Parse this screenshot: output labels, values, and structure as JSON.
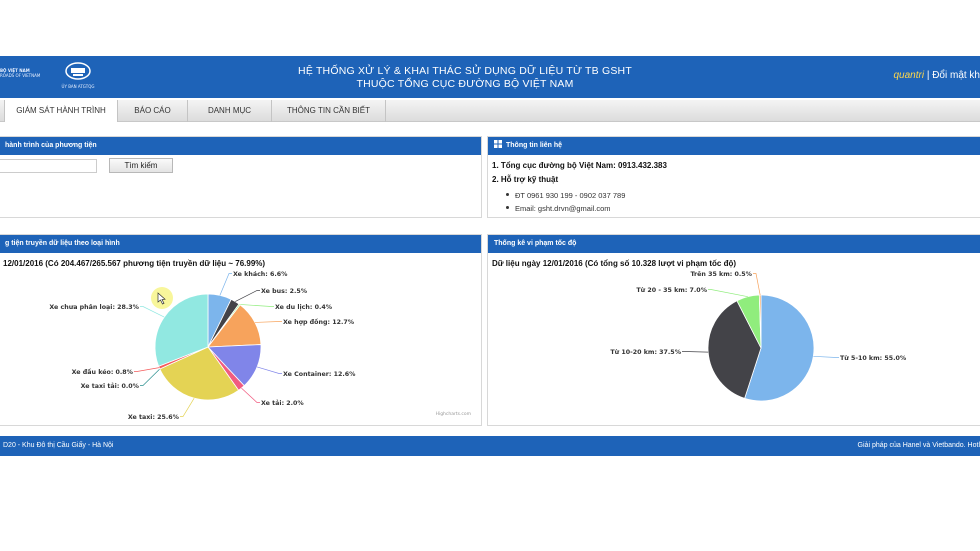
{
  "header": {
    "logo1_line1": "BỘ VIỆT NAM",
    "logo1_line2": "ROADS OF VIETNAM",
    "logo2_caption": "ỦY BAN ATGTQG",
    "title_line1": "HỆ THỐNG XỬ LÝ & KHAI THÁC SỬ DỤNG DỮ LIỆU TỪ TB GSHT",
    "title_line2": "THUỘC TỔNG CỤC ĐƯỜNG BỘ VIỆT NAM",
    "user_name": "quantri",
    "separator": " | ",
    "change_password": "Đổi mật kh"
  },
  "menu": {
    "items": [
      {
        "label": "GIÁM SÁT HÀNH TRÌNH"
      },
      {
        "label": "BÁO CÁO"
      },
      {
        "label": "DANH MỤC"
      },
      {
        "label": "THÔNG TIN CẦN BIẾT"
      }
    ]
  },
  "search_panel": {
    "title": "hành trình của phương tiện",
    "input_value": "",
    "button_label": "Tìm kiếm"
  },
  "contact_panel": {
    "title": "Thông tin liên hệ",
    "line1": "1. Tổng cục đường bộ Việt Nam: 0913.432.383",
    "line2": "2. Hỗ trợ kỹ thuật",
    "phone": "ĐT   0961 930 199 - 0902 037 789",
    "email_label": "Email: ",
    "email_value": "gsht.drvn@gmail.com"
  },
  "vehicle_panel": {
    "title": "g tiện truyền dữ liệu theo loại hình",
    "subtitle": "12/01/2016 (Có 204.467/265.567 phương tiện truyền dữ liệu ~ 76.99%)",
    "credit": "Highcharts.com"
  },
  "speed_panel": {
    "title": "Thống kê vi phạm tốc độ",
    "subtitle": "Dữ liệu ngày 12/01/2016 (Có tổng số 10.328 lượt vi phạm tốc độ)"
  },
  "footer": {
    "left": "D20 - Khu Đô thị Cầu Giấy - Hà Nội",
    "right": "Giải pháp của Hanel và Vietbando. Hotl"
  },
  "colors": {
    "header_blue": "#1e63b8",
    "slice_colors_vehicle": [
      "#7cb5ec",
      "#434348",
      "#90ed7d",
      "#f7a35c",
      "#8085e9",
      "#f15c80",
      "#e4d354",
      "#2b908f",
      "#f45b5b",
      "#91e8e1"
    ],
    "slice_colors_speed": [
      "#7cb5ec",
      "#434348",
      "#90ed7d",
      "#f7a35c"
    ]
  },
  "chart_data": [
    {
      "type": "pie",
      "title": "12/01/2016 (Có 204.467/265.567 phương tiện truyền dữ liệu ~ 76.99%)",
      "slices": [
        {
          "label": "Xe khách",
          "value": 6.6
        },
        {
          "label": "Xe bus",
          "value": 2.5
        },
        {
          "label": "Xe du lịch",
          "value": 0.4
        },
        {
          "label": "Xe hợp đồng",
          "value": 12.7
        },
        {
          "label": "Xe Container",
          "value": 12.6
        },
        {
          "label": "Xe tải",
          "value": 2.0
        },
        {
          "label": "Xe taxi",
          "value": 25.6
        },
        {
          "label": "Xe taxi tải",
          "value": 0.0
        },
        {
          "label": "Xe đầu kéo",
          "value": 0.8
        },
        {
          "label": "Xe chưa phân loại",
          "value": 28.3
        }
      ]
    },
    {
      "type": "pie",
      "title": "Dữ liệu ngày 12/01/2016 (Có tổng số 10.328 lượt vi phạm tốc độ)",
      "slices": [
        {
          "label": "Từ 5-10 km",
          "value": 55.0
        },
        {
          "label": "Từ 10-20 km",
          "value": 37.5
        },
        {
          "label": "Từ 20 - 35 km",
          "value": 7.0
        },
        {
          "label": "Trên 35 km",
          "value": 0.5
        }
      ]
    }
  ]
}
